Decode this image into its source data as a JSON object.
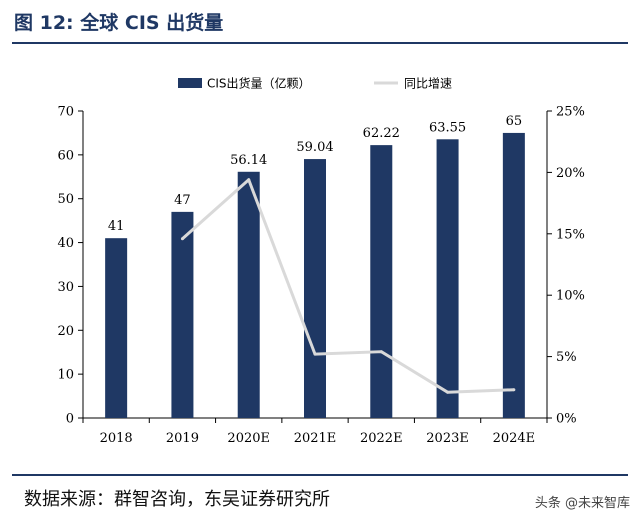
{
  "header": {
    "title": "图 12:  全球 CIS 出货量"
  },
  "footer": {
    "source": "数据来源：群智咨询，东吴证券研究所",
    "watermark": "头条 @未来智库"
  },
  "colors": {
    "bar": "#1f3864",
    "line": "#d9d9d9",
    "accent": "#1f3864"
  },
  "chart_data": {
    "type": "bar",
    "categories": [
      "2018",
      "2019",
      "2020E",
      "2021E",
      "2022E",
      "2023E",
      "2024E"
    ],
    "series": [
      {
        "name": "CIS出货量（亿颗）",
        "type": "bar",
        "axis": "left",
        "values": [
          41,
          47,
          56.14,
          59.04,
          62.22,
          63.55,
          65
        ],
        "labels": [
          "41",
          "47",
          "56.14",
          "59.04",
          "62.22",
          "63.55",
          "65"
        ]
      },
      {
        "name": "同比增速",
        "type": "line",
        "axis": "right",
        "values": [
          null,
          14.6,
          19.4,
          5.2,
          5.4,
          2.1,
          2.3
        ]
      }
    ],
    "ylim": [
      0,
      70
    ],
    "yticks": [
      "0",
      "10",
      "20",
      "30",
      "40",
      "50",
      "60",
      "70"
    ],
    "y2lim": [
      0,
      25
    ],
    "y2ticks": [
      "0%",
      "5%",
      "10%",
      "15%",
      "20%",
      "25%"
    ],
    "grid": false,
    "legend": "top-center"
  }
}
